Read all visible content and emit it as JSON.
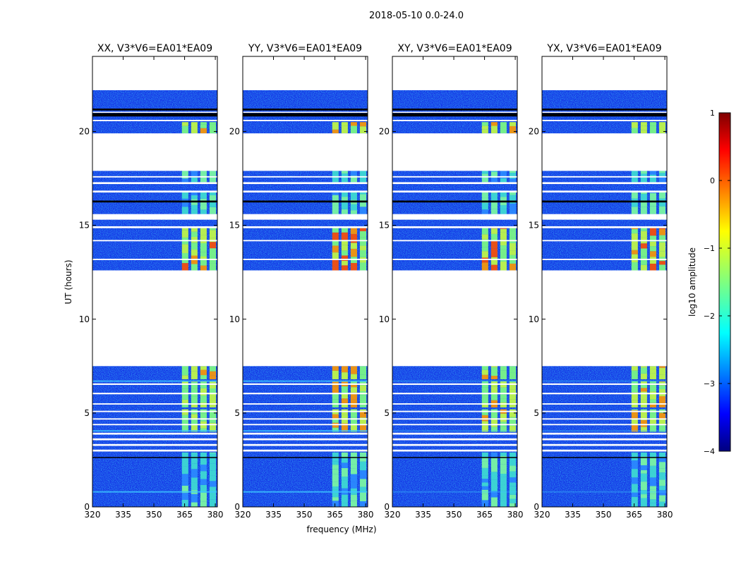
{
  "figure": {
    "suptitle": "2018-05-10 0.0-24.0",
    "xlabel": "frequency (MHz)",
    "ylabel": "UT (hours)"
  },
  "chart_data": {
    "type": "heatmap",
    "x_range_mhz": [
      320,
      381
    ],
    "y_range_hours": [
      0,
      24
    ],
    "x_ticks": [
      320,
      335,
      350,
      365,
      380
    ],
    "x_tick_labels": [
      "320",
      "335",
      "350",
      "365",
      "380"
    ],
    "y_ticks": [
      0,
      5,
      10,
      15,
      20
    ],
    "y_tick_labels": [
      "0",
      "5",
      "10",
      "15",
      "20"
    ],
    "panels": [
      {
        "title": "XX, V3*V6=EA01*EA09",
        "hot": 0.45
      },
      {
        "title": "YY, V3*V6=EA01*EA09",
        "hot": 0.65
      },
      {
        "title": "XY, V3*V6=EA01*EA09",
        "hot": 0.3
      },
      {
        "title": "YX, V3*V6=EA01*EA09",
        "hot": 0.38
      }
    ],
    "data_gaps_hours": [
      [
        7.5,
        12.6
      ],
      [
        17.9,
        19.9
      ],
      [
        22.2,
        24.0
      ]
    ],
    "bright_rfi_band_mhz": [
      363,
      381
    ],
    "colorbar": {
      "label": "log10 amplitude",
      "range": [
        -4,
        1
      ],
      "ticks": [
        "1",
        "0",
        "−1",
        "−2",
        "−3",
        "−4"
      ]
    }
  }
}
